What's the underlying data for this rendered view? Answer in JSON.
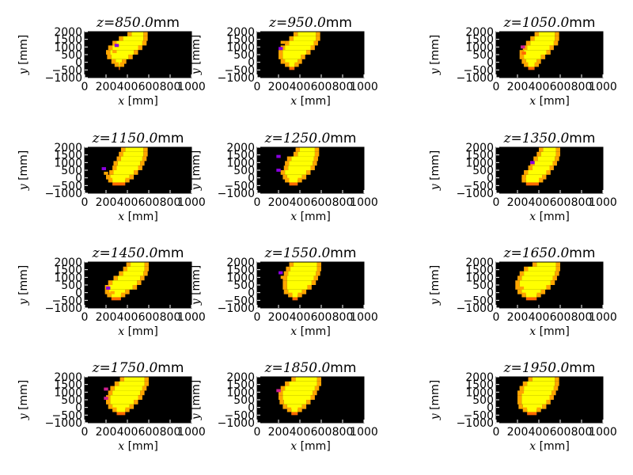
{
  "chart_data": {
    "type": "heatmap",
    "colormap": "plasma",
    "background_color": "#000000",
    "fill_color": "#ffff00",
    "edge_colors": [
      "#ffa500",
      "#ff6a00",
      "#cc2090",
      "#8a00e0"
    ],
    "grid": false,
    "xlabel": "x [mm]",
    "ylabel": "y [mm]",
    "xlim": [
      0,
      1000
    ],
    "ylim": [
      -1000,
      2000
    ],
    "xticks": [
      "0",
      "200",
      "400",
      "600",
      "800",
      "1000"
    ],
    "yticks": [
      "−1000",
      "−500",
      "0",
      "500",
      "1000",
      "1500",
      "2000"
    ],
    "panels": [
      {
        "z": "850.0",
        "shape": [
          [
            1700,
            440,
            550
          ],
          [
            1400,
            360,
            550
          ],
          [
            1100,
            300,
            540
          ],
          [
            800,
            260,
            500
          ],
          [
            500,
            240,
            460
          ],
          [
            200,
            250,
            410
          ],
          [
            -100,
            290,
            350
          ],
          [
            -300,
            320,
            330
          ]
        ],
        "edges": [
          [
            280,
            1000,
            "#8a00e0"
          ],
          [
            260,
            600,
            "#ffa500"
          ]
        ]
      },
      {
        "z": "950.0",
        "shape": [
          [
            1700,
            380,
            550
          ],
          [
            1400,
            340,
            550
          ],
          [
            1100,
            300,
            530
          ],
          [
            800,
            260,
            500
          ],
          [
            500,
            240,
            460
          ],
          [
            200,
            240,
            410
          ],
          [
            -100,
            260,
            380
          ],
          [
            -300,
            300,
            350
          ]
        ],
        "edges": [
          [
            200,
            800,
            "#8a00e0"
          ],
          [
            220,
            1200,
            "#ffa500"
          ]
        ]
      },
      {
        "z": "1050.0",
        "shape": [
          [
            1700,
            400,
            550
          ],
          [
            1400,
            360,
            550
          ],
          [
            1100,
            320,
            540
          ],
          [
            800,
            290,
            500
          ],
          [
            500,
            260,
            470
          ],
          [
            200,
            260,
            420
          ],
          [
            -100,
            280,
            380
          ],
          [
            -300,
            300,
            360
          ]
        ],
        "edges": [
          [
            230,
            900,
            "#cc2090"
          ],
          [
            240,
            500,
            "#ff6a00"
          ]
        ]
      },
      {
        "z": "1150.0",
        "shape": [
          [
            1700,
            380,
            550
          ],
          [
            1400,
            360,
            550
          ],
          [
            1100,
            340,
            540
          ],
          [
            800,
            310,
            520
          ],
          [
            500,
            300,
            500
          ],
          [
            200,
            270,
            460
          ],
          [
            -100,
            240,
            420
          ],
          [
            -300,
            260,
            380
          ]
        ],
        "edges": [
          [
            160,
            500,
            "#8a00e0"
          ],
          [
            180,
            200,
            "#ffa500"
          ]
        ]
      },
      {
        "z": "1250.0",
        "shape": [
          [
            1700,
            400,
            540
          ],
          [
            1400,
            380,
            540
          ],
          [
            1100,
            320,
            530
          ],
          [
            800,
            300,
            520
          ],
          [
            500,
            290,
            500
          ],
          [
            200,
            260,
            460
          ],
          [
            -100,
            280,
            420
          ],
          [
            -300,
            300,
            380
          ]
        ],
        "edges": [
          [
            180,
            1300,
            "#8a00e0"
          ],
          [
            180,
            400,
            "#8a00e0"
          ]
        ]
      },
      {
        "z": "1350.0",
        "shape": [
          [
            1700,
            440,
            560
          ],
          [
            1400,
            420,
            560
          ],
          [
            1100,
            390,
            550
          ],
          [
            800,
            360,
            530
          ],
          [
            500,
            340,
            500
          ],
          [
            200,
            300,
            470
          ],
          [
            -100,
            280,
            430
          ],
          [
            -300,
            280,
            400
          ]
        ],
        "edges": [
          [
            320,
            900,
            "#8a00e0"
          ],
          [
            300,
            600,
            "#ffa500"
          ]
        ]
      },
      {
        "z": "1450.0",
        "shape": [
          [
            1700,
            430,
            560
          ],
          [
            1400,
            400,
            560
          ],
          [
            1100,
            360,
            550
          ],
          [
            800,
            310,
            520
          ],
          [
            500,
            260,
            490
          ],
          [
            200,
            230,
            450
          ],
          [
            -100,
            230,
            380
          ],
          [
            -300,
            250,
            340
          ]
        ],
        "edges": [
          [
            200,
            200,
            "#8a00e0"
          ],
          [
            240,
            -100,
            "#ffa500"
          ]
        ]
      },
      {
        "z": "1550.0",
        "shape": [
          [
            1700,
            340,
            560
          ],
          [
            1400,
            310,
            560
          ],
          [
            1100,
            290,
            550
          ],
          [
            800,
            280,
            530
          ],
          [
            500,
            280,
            510
          ],
          [
            200,
            280,
            470
          ],
          [
            -100,
            290,
            420
          ],
          [
            -300,
            330,
            380
          ]
        ],
        "edges": [
          [
            200,
            1200,
            "#8a00e0"
          ],
          [
            220,
            900,
            "#ffa500"
          ]
        ]
      },
      {
        "z": "1650.0",
        "shape": [
          [
            1700,
            380,
            560
          ],
          [
            1400,
            300,
            560
          ],
          [
            1100,
            260,
            550
          ],
          [
            800,
            240,
            530
          ],
          [
            500,
            220,
            510
          ],
          [
            200,
            220,
            470
          ],
          [
            -100,
            240,
            420
          ],
          [
            -300,
            280,
            380
          ]
        ],
        "edges": [
          [
            220,
            200,
            "#ffa500"
          ]
        ]
      },
      {
        "z": "1750.0",
        "shape": [
          [
            1700,
            370,
            560
          ],
          [
            1400,
            320,
            560
          ],
          [
            1100,
            280,
            540
          ],
          [
            800,
            260,
            520
          ],
          [
            500,
            240,
            500
          ],
          [
            200,
            240,
            460
          ],
          [
            -100,
            260,
            420
          ],
          [
            -300,
            300,
            380
          ]
        ],
        "edges": [
          [
            180,
            1100,
            "#cc2090"
          ],
          [
            180,
            500,
            "#cc2090"
          ]
        ]
      },
      {
        "z": "1850.0",
        "shape": [
          [
            1700,
            360,
            560
          ],
          [
            1400,
            300,
            560
          ],
          [
            1100,
            260,
            540
          ],
          [
            800,
            240,
            520
          ],
          [
            500,
            240,
            500
          ],
          [
            200,
            250,
            460
          ],
          [
            -100,
            280,
            420
          ],
          [
            -300,
            320,
            380
          ]
        ],
        "edges": [
          [
            180,
            1000,
            "#cc2090"
          ]
        ]
      },
      {
        "z": "1950.0",
        "shape": [
          [
            1700,
            340,
            550
          ],
          [
            1400,
            290,
            550
          ],
          [
            1100,
            260,
            540
          ],
          [
            800,
            240,
            520
          ],
          [
            500,
            240,
            500
          ],
          [
            200,
            240,
            470
          ],
          [
            -100,
            250,
            430
          ],
          [
            -300,
            290,
            380
          ]
        ],
        "edges": [
          [
            220,
            1200,
            "#ffa500"
          ],
          [
            220,
            900,
            "#ffa500"
          ]
        ]
      }
    ]
  }
}
